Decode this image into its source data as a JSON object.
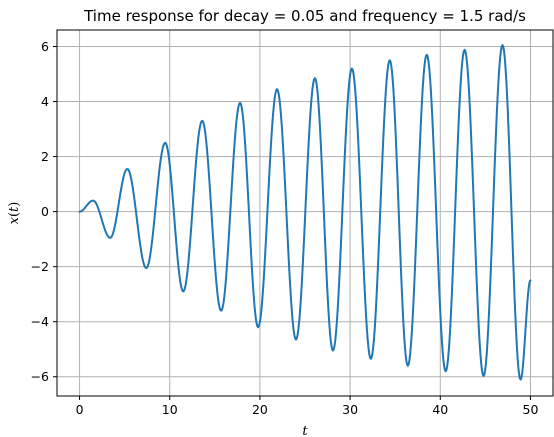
{
  "chart_data": {
    "type": "line",
    "title": "Time response for decay = 0.05 and frequency = 1.5 rad/s",
    "xlabel": "t",
    "ylabel": "x(t)",
    "xlim": [
      -2.5,
      52.5
    ],
    "ylim": [
      -6.7,
      6.6
    ],
    "xticks": [
      0,
      10,
      20,
      30,
      40,
      50
    ],
    "xtick_labels": [
      "0",
      "10",
      "20",
      "30",
      "40",
      "50"
    ],
    "yticks": [
      -6,
      -4,
      -2,
      0,
      2,
      4,
      6
    ],
    "ytick_labels": [
      "−6",
      "−4",
      "−2",
      "0",
      "2",
      "4",
      "6"
    ],
    "grid": true,
    "series_color": "#1f77b4",
    "series": [
      {
        "name": "x(t)",
        "x": [
          0.0,
          1.5,
          3.4,
          5.3,
          7.4,
          9.5,
          11.5,
          13.6,
          15.7,
          17.8,
          19.8,
          21.9,
          24.0,
          26.1,
          28.1,
          30.2,
          32.3,
          34.4,
          36.4,
          38.5,
          40.6,
          42.7,
          44.8,
          46.9,
          48.9,
          50.0
        ],
        "y": [
          0.0,
          0.4,
          -0.95,
          1.55,
          -2.05,
          2.5,
          -2.9,
          3.3,
          -3.6,
          3.95,
          -4.2,
          4.45,
          -4.65,
          4.85,
          -5.05,
          5.2,
          -5.35,
          5.5,
          -5.6,
          5.7,
          -5.8,
          5.88,
          -5.97,
          6.05,
          -6.1,
          -2.5
        ]
      }
    ]
  }
}
